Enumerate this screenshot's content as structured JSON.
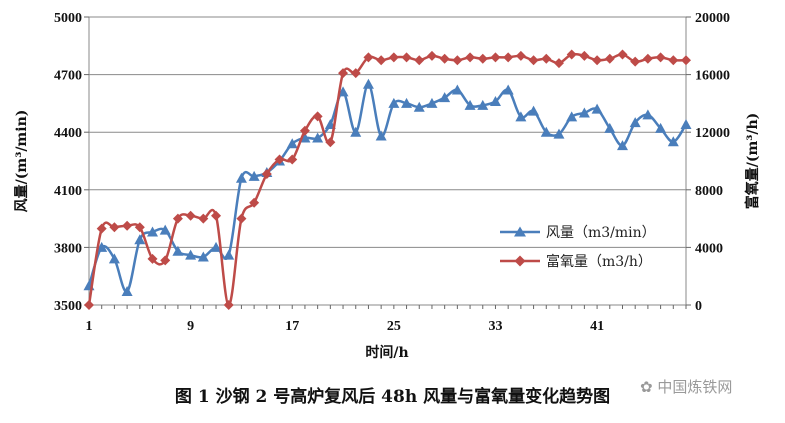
{
  "chart_data": {
    "type": "line",
    "x_ticks": [
      "1",
      "9",
      "17",
      "25",
      "33",
      "41"
    ],
    "xlabel": "时间/h",
    "ylabel_left": "风量/(m³/min)",
    "ylabel_right": "富氧量/(m³/h)",
    "ylim_left": [
      3500,
      5000
    ],
    "ylim_right": [
      0,
      20000
    ],
    "yticks_left": [
      "3500",
      "3800",
      "4100",
      "4400",
      "4700",
      "5000"
    ],
    "yticks_right": [
      "0",
      "4000",
      "8000",
      "12000",
      "16000",
      "20000"
    ],
    "xlim": [
      1,
      48
    ],
    "grid": "horizontal",
    "legend_position": "center-right",
    "x": [
      1,
      2,
      3,
      4,
      5,
      6,
      7,
      8,
      9,
      10,
      11,
      12,
      13,
      14,
      15,
      16,
      17,
      18,
      19,
      20,
      21,
      22,
      23,
      24,
      25,
      26,
      27,
      28,
      29,
      30,
      31,
      32,
      33,
      34,
      35,
      36,
      37,
      38,
      39,
      40,
      41,
      42,
      43,
      44,
      45,
      46,
      47,
      48
    ],
    "series": [
      {
        "name": "风量（m3/min）",
        "axis": "left",
        "color": "#4a7ebb",
        "marker": "triangle",
        "values": [
          3600,
          3800,
          3740,
          3570,
          3840,
          3880,
          3890,
          3780,
          3760,
          3750,
          3800,
          3760,
          4160,
          4170,
          4190,
          4250,
          4340,
          4370,
          4370,
          4440,
          4610,
          4400,
          4650,
          4380,
          4550,
          4550,
          4530,
          4550,
          4580,
          4620,
          4540,
          4540,
          4560,
          4620,
          4480,
          4510,
          4400,
          4390,
          4480,
          4500,
          4520,
          4420,
          4330,
          4450,
          4490,
          4420,
          4350,
          4440
        ]
      },
      {
        "name": "富氧量（m3/h）",
        "axis": "right",
        "color": "#be4b48",
        "marker": "diamond",
        "values": [
          0,
          5300,
          5400,
          5500,
          5400,
          3200,
          3100,
          6000,
          6200,
          6000,
          6200,
          0,
          6000,
          7100,
          9100,
          10100,
          10100,
          12100,
          13100,
          11300,
          16100,
          16100,
          17200,
          17000,
          17200,
          17200,
          17000,
          17300,
          17100,
          17000,
          17200,
          17100,
          17200,
          17200,
          17300,
          17000,
          17100,
          16800,
          17400,
          17300,
          17000,
          17100,
          17400,
          16900,
          17100,
          17200,
          17000,
          17000
        ]
      }
    ],
    "caption": "图 1    沙钢 2 号高炉复风后 48h 风量与富氧量变化趋势图"
  },
  "watermark": "中国炼铁网"
}
